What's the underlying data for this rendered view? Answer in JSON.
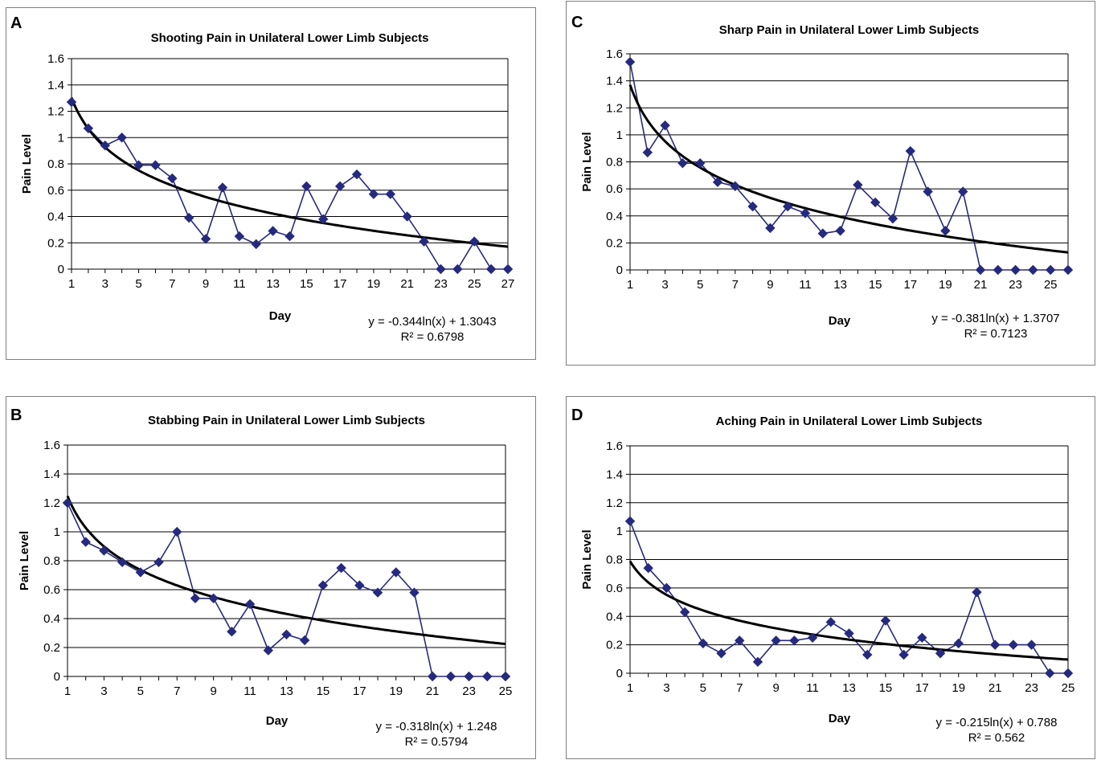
{
  "colors": {
    "series": "#262a7e",
    "trend": "#000000",
    "grid": "#000000",
    "frame": "#7f7f7f"
  },
  "chart_data": [
    {
      "panel": "A",
      "type": "line",
      "title": "Shooting Pain in Unilateral Lower Limb Subjects",
      "xlabel": "Day",
      "ylabel": "Pain Level",
      "x": [
        1,
        2,
        3,
        4,
        5,
        6,
        7,
        8,
        9,
        10,
        11,
        12,
        13,
        14,
        15,
        16,
        17,
        18,
        19,
        20,
        21,
        22,
        23,
        24,
        25,
        26,
        27
      ],
      "values": [
        1.27,
        1.07,
        0.94,
        1.0,
        0.79,
        0.79,
        0.69,
        0.39,
        0.23,
        0.62,
        0.25,
        0.19,
        0.29,
        0.25,
        0.63,
        0.38,
        0.63,
        0.72,
        0.57,
        0.57,
        0.4,
        0.21,
        0.0,
        0.0,
        0.21,
        0.0,
        0.0
      ],
      "xticks": [
        "1",
        "3",
        "5",
        "7",
        "9",
        "11",
        "13",
        "15",
        "17",
        "19",
        "21",
        "23",
        "25",
        "27"
      ],
      "yticks": [
        "0",
        "0.2",
        "0.4",
        "0.6",
        "0.8",
        "1",
        "1.2",
        "1.4",
        "1.6"
      ],
      "ylim": [
        0,
        1.6
      ],
      "xlim": [
        1,
        27
      ],
      "trend": {
        "type": "logarithmic",
        "a": -0.344,
        "b": 1.3043
      },
      "equation": "y = -0.344ln(x)  + 1.3043",
      "r_squared": "R² = 0.6798",
      "marker": "diamond",
      "grid": "horizontal"
    },
    {
      "panel": "C",
      "type": "line",
      "title": "Sharp Pain in Unilateral Lower Limb Subjects",
      "xlabel": "Day",
      "ylabel": "Pain Level",
      "x": [
        1,
        2,
        3,
        4,
        5,
        6,
        7,
        8,
        9,
        10,
        11,
        12,
        13,
        14,
        15,
        16,
        17,
        18,
        19,
        20,
        21,
        22,
        23,
        24,
        25,
        26
      ],
      "values": [
        1.54,
        0.87,
        1.07,
        0.79,
        0.79,
        0.65,
        0.62,
        0.47,
        0.31,
        0.47,
        0.42,
        0.27,
        0.29,
        0.63,
        0.5,
        0.38,
        0.88,
        0.58,
        0.29,
        0.58,
        0.0,
        0.0,
        0.0,
        0.0,
        0.0,
        0.0
      ],
      "xticks": [
        "1",
        "3",
        "5",
        "7",
        "9",
        "11",
        "13",
        "15",
        "17",
        "19",
        "21",
        "23",
        "25"
      ],
      "yticks": [
        "0",
        "0.2",
        "0.4",
        "0.6",
        "0.8",
        "1",
        "1.2",
        "1.4",
        "1.6"
      ],
      "ylim": [
        0,
        1.6
      ],
      "xlim": [
        1,
        26
      ],
      "trend": {
        "type": "logarithmic",
        "a": -0.381,
        "b": 1.3707
      },
      "equation": "y = -0.381ln(x)  + 1.3707",
      "r_squared": "R² = 0.7123",
      "marker": "diamond",
      "grid": "horizontal"
    },
    {
      "panel": "B",
      "type": "line",
      "title": "Stabbing Pain in Unilateral Lower Limb Subjects",
      "xlabel": "Day",
      "ylabel": "Pain Level",
      "x": [
        1,
        2,
        3,
        4,
        5,
        6,
        7,
        8,
        9,
        10,
        11,
        12,
        13,
        14,
        15,
        16,
        17,
        18,
        19,
        20,
        21,
        22,
        23,
        24,
        25
      ],
      "values": [
        1.2,
        0.93,
        0.87,
        0.79,
        0.72,
        0.79,
        1.0,
        0.54,
        0.54,
        0.31,
        0.5,
        0.18,
        0.29,
        0.25,
        0.63,
        0.75,
        0.63,
        0.58,
        0.72,
        0.58,
        0.0,
        0.0,
        0.0,
        0.0,
        0.0
      ],
      "xticks": [
        "1",
        "3",
        "5",
        "7",
        "9",
        "11",
        "13",
        "15",
        "17",
        "19",
        "21",
        "23",
        "25"
      ],
      "yticks": [
        "0",
        "0.2",
        "0.4",
        "0.6",
        "0.8",
        "1",
        "1.2",
        "1.4",
        "1.6"
      ],
      "ylim": [
        0,
        1.6
      ],
      "xlim": [
        1,
        25
      ],
      "trend": {
        "type": "logarithmic",
        "a": -0.318,
        "b": 1.248
      },
      "equation": "y = -0.318ln(x)  + 1.248",
      "r_squared": "R² = 0.5794",
      "marker": "diamond",
      "grid": "horizontal"
    },
    {
      "panel": "D",
      "type": "line",
      "title": "Aching Pain in Unilateral Lower Limb Subjects",
      "xlabel": "Day",
      "ylabel": "Pain Level",
      "x": [
        1,
        2,
        3,
        4,
        5,
        6,
        7,
        8,
        9,
        10,
        11,
        12,
        13,
        14,
        15,
        16,
        17,
        18,
        19,
        20,
        21,
        22,
        23,
        24,
        25
      ],
      "values": [
        1.07,
        0.74,
        0.6,
        0.43,
        0.21,
        0.14,
        0.23,
        0.08,
        0.23,
        0.23,
        0.25,
        0.36,
        0.28,
        0.13,
        0.37,
        0.13,
        0.25,
        0.14,
        0.21,
        0.57,
        0.2,
        0.2,
        0.2,
        0.0,
        0.0
      ],
      "xticks": [
        "1",
        "3",
        "5",
        "7",
        "9",
        "11",
        "13",
        "15",
        "17",
        "19",
        "21",
        "23",
        "25"
      ],
      "yticks": [
        "0",
        "0.2",
        "0.4",
        "0.6",
        "0.8",
        "1",
        "1.2",
        "1.4",
        "1.6"
      ],
      "ylim": [
        0,
        1.6
      ],
      "xlim": [
        1,
        25
      ],
      "trend": {
        "type": "logarithmic",
        "a": -0.215,
        "b": 0.788
      },
      "equation": "y = -0.215ln(x)  + 0.788",
      "r_squared": "R² = 0.562",
      "marker": "diamond",
      "grid": "horizontal"
    }
  ]
}
